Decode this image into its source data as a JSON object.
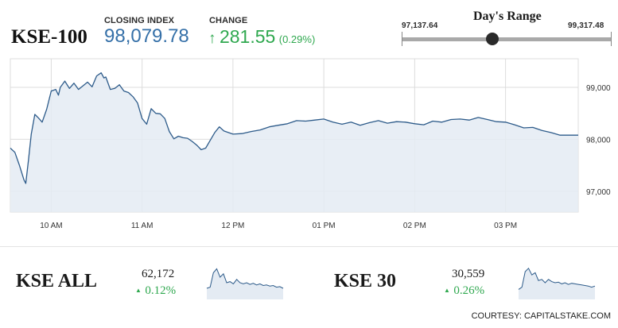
{
  "header": {
    "index_name": "KSE-100",
    "closing_label": "CLOSING INDEX",
    "closing_value": "98,079.78",
    "change_label": "CHANGE",
    "change_value": "281.55",
    "change_pct": "(0.29%)",
    "up_arrow": "↑"
  },
  "range": {
    "title": "Day's Range",
    "low": "97,137.64",
    "high": "99,317.48",
    "current_position": 0.43
  },
  "colors": {
    "line": "#2d5b8a",
    "fill": "#e4ebf3",
    "up": "#2fa84f",
    "value": "#3570a8",
    "grid": "#dcdcdc",
    "range_bar": "#a9a9a9"
  },
  "chart_data": {
    "type": "area",
    "x_ticks": [
      "10 AM",
      "11 AM",
      "12 PM",
      "01 PM",
      "02 PM",
      "03 PM"
    ],
    "y_ticks": [
      "99,000",
      "98,000",
      "97,000"
    ],
    "y_tick_values": [
      99000,
      98000,
      97000
    ],
    "ylim": [
      96600,
      99550
    ],
    "xlim": [
      9.55,
      15.8
    ],
    "grid": true,
    "series": [
      {
        "x": [
          9.55,
          9.6,
          9.65,
          9.7,
          9.72,
          9.75,
          9.78,
          9.82,
          9.86,
          9.9,
          9.95,
          10.0,
          10.05,
          10.08,
          10.1,
          10.15,
          10.2,
          10.25,
          10.3,
          10.35,
          10.4,
          10.45,
          10.5,
          10.55,
          10.58,
          10.6,
          10.65,
          10.7,
          10.75,
          10.8,
          10.85,
          10.9,
          10.95,
          11.0,
          11.05,
          11.1,
          11.15,
          11.2,
          11.25,
          11.3,
          11.35,
          11.4,
          11.45,
          11.5,
          11.55,
          11.6,
          11.65,
          11.7,
          11.75,
          11.8,
          11.85,
          11.9,
          11.95,
          12.0,
          12.1,
          12.2,
          12.3,
          12.4,
          12.5,
          12.6,
          12.7,
          12.8,
          12.9,
          13.0,
          13.1,
          13.2,
          13.3,
          13.4,
          13.5,
          13.6,
          13.7,
          13.8,
          13.9,
          14.0,
          14.1,
          14.2,
          14.3,
          14.4,
          14.5,
          14.6,
          14.7,
          14.8,
          14.9,
          15.0,
          15.1,
          15.2,
          15.3,
          15.4,
          15.5,
          15.6,
          15.7,
          15.8
        ],
        "values": [
          97830,
          97750,
          97500,
          97220,
          97150,
          97600,
          98100,
          98480,
          98410,
          98330,
          98580,
          98930,
          98960,
          98850,
          99000,
          99120,
          98980,
          99080,
          98960,
          99030,
          99100,
          99010,
          99220,
          99280,
          99180,
          99200,
          98960,
          98980,
          99050,
          98930,
          98900,
          98820,
          98700,
          98400,
          98290,
          98590,
          98500,
          98490,
          98400,
          98150,
          98010,
          98060,
          98030,
          98020,
          97960,
          97890,
          97800,
          97830,
          97980,
          98130,
          98240,
          98160,
          98130,
          98100,
          98110,
          98150,
          98180,
          98240,
          98270,
          98300,
          98360,
          98350,
          98370,
          98390,
          98330,
          98290,
          98330,
          98270,
          98320,
          98360,
          98310,
          98340,
          98330,
          98300,
          98280,
          98350,
          98330,
          98380,
          98390,
          98370,
          98420,
          98380,
          98340,
          98330,
          98280,
          98220,
          98230,
          98170,
          98130,
          98080,
          98080,
          98080
        ]
      }
    ]
  },
  "mini_indices": [
    {
      "name": "KSE ALL",
      "value": "62,172",
      "change": "0.12%",
      "up_arrow": "▲",
      "spark": [
        20,
        22,
        48,
        55,
        40,
        46,
        30,
        32,
        28,
        36,
        30,
        28,
        30,
        27,
        29,
        26,
        28,
        25,
        26,
        24,
        25,
        22,
        23,
        20
      ]
    },
    {
      "name": "KSE 30",
      "value": "30,559",
      "change": "0.26%",
      "up_arrow": "▲",
      "spark": [
        18,
        22,
        50,
        56,
        44,
        48,
        34,
        36,
        30,
        36,
        32,
        30,
        31,
        28,
        30,
        27,
        29,
        28,
        27,
        26,
        25,
        24,
        22,
        24
      ]
    }
  ],
  "footer": {
    "courtesy": "COURTESY: CAPITALSTAKE.COM"
  }
}
